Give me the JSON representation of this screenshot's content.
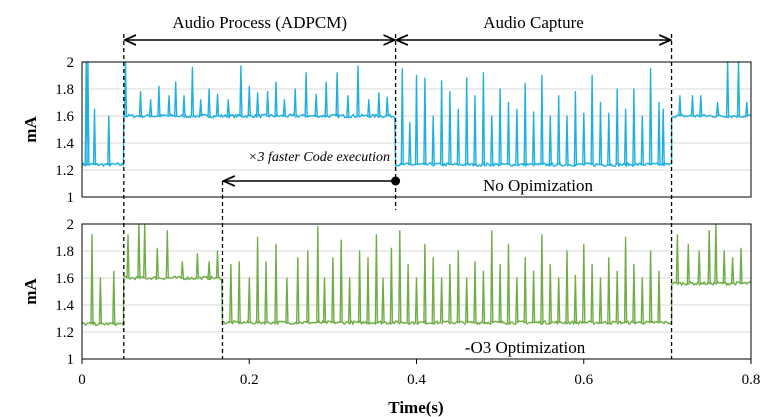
{
  "chart_data": [
    {
      "type": "line",
      "ylabel": "mA",
      "yticks": [
        "2",
        "1.8",
        "1.6",
        "1.4",
        "1.2",
        "1"
      ],
      "ylim": [
        1,
        2
      ],
      "xlim": [
        0,
        0.8
      ],
      "grid": true,
      "annotation": "No Opimization",
      "series": [
        {
          "color": "#1fb0e0",
          "segments": [
            {
              "x_start": 0.0,
              "x_end": 0.05,
              "baseline": 1.24,
              "spikes": [
                [
                  0.005,
                  2.0
                ],
                [
                  0.007,
                  2.0
                ],
                [
                  0.015,
                  1.65
                ],
                [
                  0.032,
                  1.6
                ]
              ]
            },
            {
              "x_start": 0.05,
              "x_end": 0.375,
              "baseline": 1.6,
              "spikes": [
                [
                  0.052,
                  2.0
                ],
                [
                  0.07,
                  1.78
                ],
                [
                  0.082,
                  1.72
                ],
                [
                  0.092,
                  1.82
                ],
                [
                  0.104,
                  1.75
                ],
                [
                  0.112,
                  1.85
                ],
                [
                  0.122,
                  1.75
                ],
                [
                  0.132,
                  1.96
                ],
                [
                  0.142,
                  1.72
                ],
                [
                  0.152,
                  1.8
                ],
                [
                  0.162,
                  1.76
                ],
                [
                  0.175,
                  1.72
                ],
                [
                  0.19,
                  1.97
                ],
                [
                  0.2,
                  1.82
                ],
                [
                  0.21,
                  1.77
                ],
                [
                  0.222,
                  1.78
                ],
                [
                  0.232,
                  1.85
                ],
                [
                  0.242,
                  1.72
                ],
                [
                  0.255,
                  1.8
                ],
                [
                  0.268,
                  1.92
                ],
                [
                  0.28,
                  1.76
                ],
                [
                  0.292,
                  1.85
                ],
                [
                  0.305,
                  1.92
                ],
                [
                  0.318,
                  1.75
                ],
                [
                  0.33,
                  1.97
                ],
                [
                  0.343,
                  1.72
                ],
                [
                  0.355,
                  1.77
                ],
                [
                  0.365,
                  1.74
                ]
              ]
            },
            {
              "x_start": 0.375,
              "x_end": 0.705,
              "baseline": 1.24,
              "spikes": [
                [
                  0.383,
                  1.95
                ],
                [
                  0.392,
                  1.55
                ],
                [
                  0.4,
                  1.9
                ],
                [
                  0.41,
                  1.88
                ],
                [
                  0.42,
                  1.6
                ],
                [
                  0.43,
                  1.86
                ],
                [
                  0.44,
                  1.78
                ],
                [
                  0.45,
                  1.65
                ],
                [
                  0.46,
                  1.88
                ],
                [
                  0.47,
                  1.75
                ],
                [
                  0.48,
                  1.92
                ],
                [
                  0.49,
                  1.6
                ],
                [
                  0.5,
                  1.8
                ],
                [
                  0.51,
                  1.7
                ],
                [
                  0.52,
                  1.65
                ],
                [
                  0.53,
                  1.84
                ],
                [
                  0.54,
                  1.63
                ],
                [
                  0.55,
                  1.9
                ],
                [
                  0.56,
                  1.6
                ],
                [
                  0.57,
                  1.75
                ],
                [
                  0.58,
                  1.6
                ],
                [
                  0.59,
                  1.78
                ],
                [
                  0.6,
                  1.62
                ],
                [
                  0.61,
                  1.9
                ],
                [
                  0.62,
                  1.7
                ],
                [
                  0.63,
                  1.62
                ],
                [
                  0.64,
                  1.8
                ],
                [
                  0.65,
                  1.65
                ],
                [
                  0.66,
                  1.8
                ],
                [
                  0.67,
                  1.6
                ],
                [
                  0.68,
                  1.95
                ],
                [
                  0.69,
                  1.7
                ],
                [
                  0.695,
                  1.65
                ]
              ]
            },
            {
              "x_start": 0.705,
              "x_end": 0.8,
              "baseline": 1.6,
              "spikes": [
                [
                  0.715,
                  1.75
                ],
                [
                  0.73,
                  1.75
                ],
                [
                  0.74,
                  1.75
                ],
                [
                  0.76,
                  1.7
                ],
                [
                  0.772,
                  2.0
                ],
                [
                  0.785,
                  2.0
                ],
                [
                  0.795,
                  1.7
                ]
              ]
            }
          ]
        }
      ]
    },
    {
      "type": "line",
      "ylabel": "mA",
      "xlabel": "Time(s)",
      "yticks": [
        "2",
        "1.8",
        "1.6",
        "1.4",
        "1.2",
        "1"
      ],
      "xticks": [
        "0",
        "0.2",
        "0.4",
        "0.6",
        "0.8"
      ],
      "ylim": [
        1,
        2
      ],
      "xlim": [
        0,
        0.8
      ],
      "grid": true,
      "annotation": "-O3 Optimization",
      "series": [
        {
          "color": "#70ad47",
          "segments": [
            {
              "x_start": 0.0,
              "x_end": 0.05,
              "baseline": 1.26,
              "spikes": [
                [
                  0.012,
                  1.92
                ],
                [
                  0.022,
                  1.6
                ],
                [
                  0.038,
                  1.65
                ]
              ]
            },
            {
              "x_start": 0.05,
              "x_end": 0.168,
              "baseline": 1.6,
              "spikes": [
                [
                  0.055,
                  1.92
                ],
                [
                  0.068,
                  2.0
                ],
                [
                  0.075,
                  2.0
                ],
                [
                  0.09,
                  1.82
                ],
                [
                  0.102,
                  1.95
                ],
                [
                  0.12,
                  1.72
                ],
                [
                  0.138,
                  1.78
                ],
                [
                  0.152,
                  1.72
                ],
                [
                  0.162,
                  1.8
                ]
              ]
            },
            {
              "x_start": 0.168,
              "x_end": 0.705,
              "baseline": 1.27,
              "spikes": [
                [
                  0.178,
                  1.7
                ],
                [
                  0.188,
                  1.72
                ],
                [
                  0.2,
                  1.6
                ],
                [
                  0.21,
                  1.9
                ],
                [
                  0.22,
                  1.72
                ],
                [
                  0.232,
                  1.85
                ],
                [
                  0.245,
                  1.6
                ],
                [
                  0.258,
                  1.75
                ],
                [
                  0.27,
                  1.8
                ],
                [
                  0.282,
                  1.98
                ],
                [
                  0.29,
                  1.6
                ],
                [
                  0.3,
                  1.75
                ],
                [
                  0.31,
                  1.88
                ],
                [
                  0.32,
                  1.6
                ],
                [
                  0.332,
                  1.8
                ],
                [
                  0.342,
                  1.75
                ],
                [
                  0.352,
                  1.92
                ],
                [
                  0.36,
                  1.6
                ],
                [
                  0.37,
                  1.82
                ],
                [
                  0.38,
                  1.95
                ],
                [
                  0.39,
                  1.7
                ],
                [
                  0.4,
                  1.6
                ],
                [
                  0.41,
                  1.85
                ],
                [
                  0.42,
                  1.75
                ],
                [
                  0.43,
                  1.6
                ],
                [
                  0.44,
                  1.7
                ],
                [
                  0.45,
                  1.8
                ],
                [
                  0.46,
                  1.6
                ],
                [
                  0.47,
                  1.72
                ],
                [
                  0.48,
                  1.65
                ],
                [
                  0.49,
                  1.95
                ],
                [
                  0.5,
                  1.7
                ],
                [
                  0.51,
                  1.85
                ],
                [
                  0.52,
                  1.6
                ],
                [
                  0.53,
                  1.75
                ],
                [
                  0.54,
                  1.65
                ],
                [
                  0.55,
                  1.92
                ],
                [
                  0.56,
                  1.7
                ],
                [
                  0.57,
                  1.6
                ],
                [
                  0.58,
                  1.8
                ],
                [
                  0.59,
                  1.62
                ],
                [
                  0.6,
                  1.85
                ],
                [
                  0.61,
                  1.7
                ],
                [
                  0.62,
                  1.6
                ],
                [
                  0.63,
                  1.75
                ],
                [
                  0.64,
                  1.65
                ],
                [
                  0.65,
                  1.9
                ],
                [
                  0.66,
                  1.7
                ],
                [
                  0.67,
                  1.6
                ],
                [
                  0.68,
                  1.8
                ],
                [
                  0.69,
                  1.65
                ]
              ]
            },
            {
              "x_start": 0.705,
              "x_end": 0.8,
              "baseline": 1.56,
              "spikes": [
                [
                  0.712,
                  1.92
                ],
                [
                  0.725,
                  1.85
                ],
                [
                  0.738,
                  1.8
                ],
                [
                  0.75,
                  1.95
                ],
                [
                  0.758,
                  2.0
                ],
                [
                  0.768,
                  1.8
                ],
                [
                  0.778,
                  1.75
                ],
                [
                  0.788,
                  1.82
                ]
              ]
            }
          ]
        }
      ]
    }
  ],
  "annotations": {
    "audio_process": "Audio Process (ADPCM)",
    "audio_capture": "Audio Capture",
    "speedup": "×3 faster Code execution",
    "boundaries": [
      0.05,
      0.375,
      0.705
    ],
    "speedup_from": 0.375,
    "speedup_to": 0.168
  },
  "colors": {
    "no_opt": "#1fb0e0",
    "o3": "#70ad47"
  }
}
